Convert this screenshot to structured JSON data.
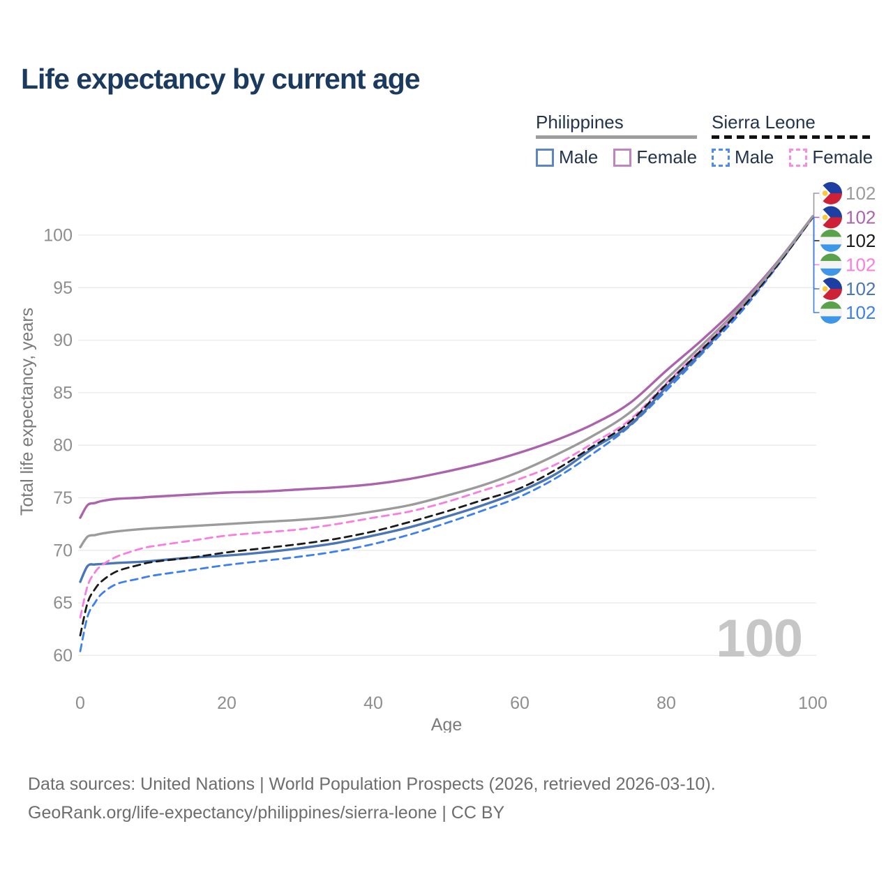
{
  "title": "Life expectancy by current age",
  "legend": {
    "groups": [
      {
        "label": "Philippines",
        "line_style": "solid",
        "underline_color": "#9e9e9e",
        "items": [
          {
            "label": "Male",
            "swatch_color": "#5c85c6",
            "dashed": false
          },
          {
            "label": "Female",
            "swatch_color": "#c183c1",
            "dashed": false
          }
        ]
      },
      {
        "label": "Sierra Leone",
        "line_style": "dashed",
        "underline_color": "#111111",
        "items": [
          {
            "label": "Male",
            "swatch_color": "#4a8bf5",
            "dashed": true
          },
          {
            "label": "Female",
            "swatch_color": "#fb8ae3",
            "dashed": true
          }
        ]
      }
    ]
  },
  "watermark": "100",
  "footer": {
    "line1": "Data sources: United Nations | World Population Prospects (2026, retrieved 2026-03-10).",
    "line2": "GeoRank.org/life-expectancy/philippines/sierra-leone | CC BY"
  },
  "chart_data": {
    "type": "line",
    "title": "Life expectancy by current age",
    "xlabel": "Age",
    "ylabel": "Total life expectancy, years",
    "xlim": [
      0,
      100
    ],
    "ylim": [
      58,
      103
    ],
    "xticks": [
      0,
      20,
      40,
      60,
      80,
      100
    ],
    "yticks": [
      60,
      65,
      70,
      75,
      80,
      85,
      90,
      95,
      100
    ],
    "grid": "horizontal",
    "legend_position": "top-right",
    "tick_color": "#8e8e8e",
    "axis_title_color": "#7a7a7a",
    "gridline_color": "#e9e9e9",
    "x": [
      0,
      1,
      2,
      3,
      5,
      8,
      10,
      15,
      20,
      25,
      30,
      35,
      40,
      45,
      50,
      55,
      60,
      65,
      70,
      75,
      80,
      85,
      90,
      95,
      100
    ],
    "series": [
      {
        "name": "Philippines Total",
        "country": "Philippines",
        "sex": "total",
        "flag": "philippines",
        "color": "#9b9b9b",
        "dashed": false,
        "end_label": "102",
        "values": [
          70.3,
          71.3,
          71.45,
          71.6,
          71.8,
          72.0,
          72.1,
          72.3,
          72.5,
          72.7,
          72.9,
          73.2,
          73.7,
          74.3,
          75.2,
          76.2,
          77.5,
          79.1,
          80.9,
          83.1,
          86.3,
          89.6,
          93.1,
          97.2,
          101.8
        ]
      },
      {
        "name": "Philippines Female",
        "country": "Philippines",
        "sex": "female",
        "flag": "philippines",
        "color": "#ab63ad",
        "dashed": false,
        "end_label": "102",
        "values": [
          73.1,
          74.3,
          74.5,
          74.7,
          74.9,
          75.0,
          75.1,
          75.3,
          75.5,
          75.6,
          75.8,
          76.0,
          76.3,
          76.8,
          77.5,
          78.3,
          79.3,
          80.5,
          82.0,
          84.0,
          87.1,
          90.1,
          93.4,
          97.3,
          101.8
        ]
      },
      {
        "name": "Sierra Leone Total",
        "country": "Sierra Leone",
        "sex": "total",
        "flag": "sierra-leone",
        "color": "#1a1a1a",
        "dashed": true,
        "end_label": "102",
        "values": [
          61.9,
          65.0,
          66.3,
          67.1,
          68.0,
          68.6,
          68.9,
          69.3,
          69.8,
          70.2,
          70.6,
          71.1,
          71.8,
          72.7,
          73.7,
          74.8,
          75.9,
          77.7,
          79.9,
          82.2,
          85.8,
          89.2,
          92.8,
          97.0,
          101.7
        ]
      },
      {
        "name": "Sierra Leone Female",
        "country": "Sierra Leone",
        "sex": "female",
        "flag": "sierra-leone",
        "color": "#f97ce1",
        "dashed": true,
        "end_label": "102",
        "values": [
          63.6,
          66.6,
          67.9,
          68.6,
          69.4,
          70.1,
          70.4,
          70.9,
          71.4,
          71.7,
          72.0,
          72.5,
          73.1,
          73.7,
          74.6,
          75.7,
          76.8,
          78.2,
          80.2,
          82.4,
          85.9,
          89.3,
          92.9,
          97.1,
          101.7
        ]
      },
      {
        "name": "Philippines Male",
        "country": "Philippines",
        "sex": "male",
        "flag": "philippines",
        "color": "#4a76b8",
        "dashed": false,
        "end_label": "102",
        "values": [
          67.0,
          68.5,
          68.65,
          68.7,
          68.8,
          68.9,
          69.0,
          69.3,
          69.5,
          69.8,
          70.2,
          70.7,
          71.4,
          72.2,
          73.2,
          74.3,
          75.6,
          77.3,
          79.7,
          81.9,
          85.5,
          89.0,
          92.8,
          97.0,
          101.7
        ]
      },
      {
        "name": "Sierra Leone Male",
        "country": "Sierra Leone",
        "sex": "male",
        "flag": "sierra-leone",
        "color": "#3c7ff2",
        "dashed": true,
        "end_label": "102",
        "values": [
          60.4,
          63.7,
          65.0,
          65.9,
          66.8,
          67.3,
          67.6,
          68.1,
          68.6,
          69.0,
          69.4,
          69.9,
          70.6,
          71.5,
          72.6,
          73.8,
          75.1,
          76.9,
          79.2,
          81.8,
          85.2,
          88.8,
          92.5,
          96.9,
          101.7
        ]
      }
    ],
    "flag_colors": {
      "philippines": {
        "blue": "#1d3fa3",
        "red": "#ce2036",
        "white": "#ffffff",
        "sun": "#fdc93c"
      },
      "sierra_leone": {
        "green": "#5aa14b",
        "white": "#f4f4f4",
        "blue": "#3e96e8"
      }
    },
    "end_label_value": 102
  }
}
